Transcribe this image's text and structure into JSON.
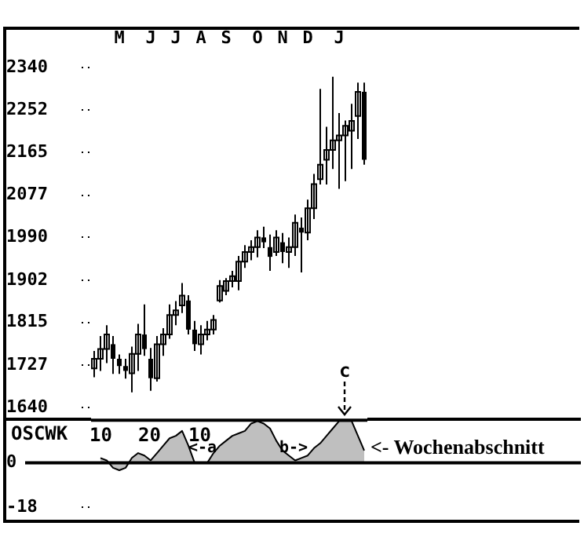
{
  "chart_data": [
    {
      "type": "candlestick",
      "categories": [
        null,
        null,
        null,
        null,
        "M",
        null,
        null,
        null,
        null,
        "J",
        null,
        null,
        null,
        "J",
        null,
        null,
        null,
        "A",
        null,
        null,
        null,
        "S",
        null,
        null,
        null,
        null,
        "O",
        null,
        null,
        null,
        "N",
        null,
        null,
        null,
        "D",
        null,
        null,
        null,
        null,
        "J",
        null,
        null,
        null,
        null
      ],
      "ohlc": [
        [
          1720,
          1756,
          1702,
          1740
        ],
        [
          1740,
          1787,
          1715,
          1760
        ],
        [
          1760,
          1809,
          1731,
          1790
        ],
        [
          1770,
          1787,
          1709,
          1740
        ],
        [
          1740,
          1749,
          1709,
          1725
        ],
        [
          1725,
          1740,
          1699,
          1715
        ],
        [
          1710,
          1765,
          1671,
          1750
        ],
        [
          1750,
          1812,
          1715,
          1790
        ],
        [
          1790,
          1852,
          1746,
          1760
        ],
        [
          1740,
          1762,
          1674,
          1700
        ],
        [
          1700,
          1787,
          1693,
          1770
        ],
        [
          1770,
          1803,
          1746,
          1790
        ],
        [
          1790,
          1852,
          1781,
          1830
        ],
        [
          1830,
          1859,
          1809,
          1840
        ],
        [
          1850,
          1896,
          1834,
          1870
        ],
        [
          1860,
          1871,
          1790,
          1800
        ],
        [
          1800,
          1818,
          1756,
          1770
        ],
        [
          1770,
          1809,
          1749,
          1790
        ],
        [
          1790,
          1818,
          1778,
          1800
        ],
        [
          1800,
          1830,
          1790,
          1820
        ],
        [
          1860,
          1902,
          1856,
          1890
        ],
        [
          1880,
          1906,
          1871,
          1900
        ],
        [
          1900,
          1921,
          1887,
          1910
        ],
        [
          1900,
          1952,
          1881,
          1940
        ],
        [
          1940,
          1974,
          1927,
          1960
        ],
        [
          1960,
          1984,
          1943,
          1970
        ],
        [
          1970,
          2005,
          1949,
          1990
        ],
        [
          1990,
          2012,
          1968,
          1980
        ],
        [
          1970,
          1996,
          1921,
          1950
        ],
        [
          1960,
          2005,
          1952,
          1990
        ],
        [
          1980,
          1999,
          1937,
          1960
        ],
        [
          1960,
          1990,
          1927,
          1970
        ],
        [
          1970,
          2037,
          1952,
          2020
        ],
        [
          2010,
          2031,
          1918,
          2000
        ],
        [
          2000,
          2068,
          1984,
          2050
        ],
        [
          2050,
          2121,
          2028,
          2100
        ],
        [
          2110,
          2296,
          2099,
          2140
        ],
        [
          2150,
          2218,
          2099,
          2170
        ],
        [
          2170,
          2321,
          2131,
          2190
        ],
        [
          2190,
          2246,
          2090,
          2200
        ],
        [
          2200,
          2231,
          2106,
          2220
        ],
        [
          2210,
          2265,
          2131,
          2230
        ],
        [
          2240,
          2309,
          2193,
          2290
        ],
        [
          2290,
          2309,
          2140,
          2150
        ]
      ],
      "color": "#000000",
      "ylim": [
        1640,
        2340
      ],
      "yticks": [
        1640,
        1727,
        1815,
        1902,
        1990,
        2077,
        2165,
        2252,
        2340
      ]
    },
    {
      "type": "area",
      "title": "OSCWK",
      "categories": [
        null,
        null,
        null,
        null,
        null,
        null,
        null,
        null,
        null,
        null,
        null,
        null,
        null,
        null,
        null,
        null,
        null,
        null,
        null,
        null,
        null,
        null,
        null,
        null,
        null,
        null,
        null,
        null,
        null,
        null,
        null,
        null,
        null,
        null,
        null,
        null,
        null,
        null,
        null,
        null,
        null,
        null,
        null,
        null
      ],
      "values": [
        null,
        2,
        1,
        -2,
        -3,
        -2,
        2,
        4,
        3,
        1,
        4,
        7,
        10,
        11,
        13,
        7,
        0,
        0,
        0,
        4,
        7,
        9,
        11,
        12,
        13,
        16,
        17,
        16,
        14,
        9,
        5,
        3,
        1,
        2,
        3,
        6,
        8,
        11,
        14,
        17,
        17,
        17,
        11,
        5
      ],
      "color": "#000000",
      "ylim": [
        -18,
        18
      ],
      "yticks": [
        0,
        -18
      ],
      "tick_labels": "y",
      "ref_lines": [
        {
          "axis": "y",
          "value": 0,
          "color": "#000000"
        }
      ],
      "annotations": [
        "10",
        "20",
        "10",
        "<-a",
        "b->",
        "c",
        "<- Wochenabschnitt"
      ]
    }
  ]
}
